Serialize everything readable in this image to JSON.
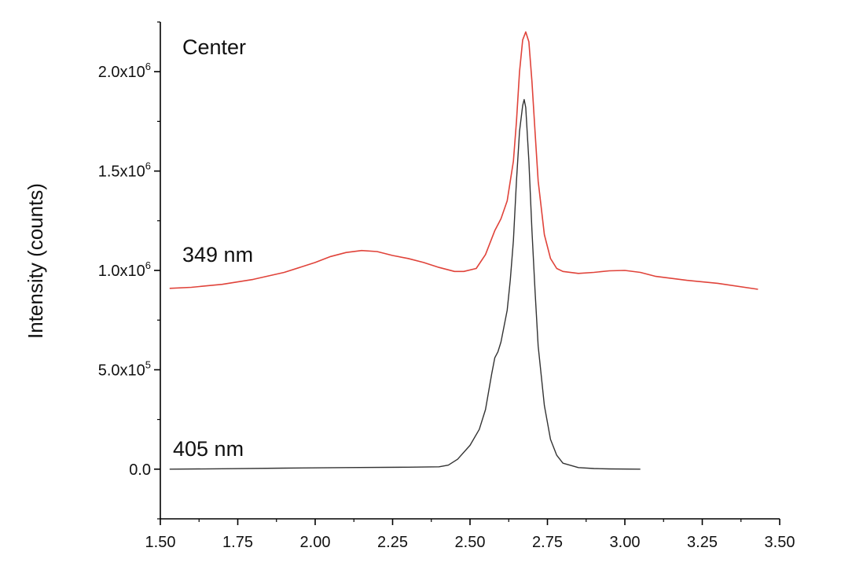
{
  "chart_data": {
    "type": "line",
    "title": "",
    "xlabel": "",
    "ylabel": "Intensity (counts)",
    "xlim": [
      1.5,
      3.5
    ],
    "ylim": [
      -250000,
      2250000
    ],
    "grid": false,
    "x_ticks": [
      {
        "value": 1.5,
        "label": "1.50"
      },
      {
        "value": 1.75,
        "label": "1.75"
      },
      {
        "value": 2.0,
        "label": "2.00"
      },
      {
        "value": 2.25,
        "label": "2.25"
      },
      {
        "value": 2.5,
        "label": "2.50"
      },
      {
        "value": 2.75,
        "label": "2.75"
      },
      {
        "value": 3.0,
        "label": "3.00"
      },
      {
        "value": 3.25,
        "label": "3.25"
      },
      {
        "value": 3.5,
        "label": "3.50"
      }
    ],
    "y_ticks": [
      {
        "value": 0,
        "mantissa": "0.0",
        "exponent": ""
      },
      {
        "value": 500000,
        "mantissa": "5.0x10",
        "exponent": "5"
      },
      {
        "value": 1000000,
        "mantissa": "1.0x10",
        "exponent": "6"
      },
      {
        "value": 1500000,
        "mantissa": "1.5x10",
        "exponent": "6"
      },
      {
        "value": 2000000,
        "mantissa": "2.0x10",
        "exponent": "6"
      }
    ],
    "annotations": {
      "panel": "Center",
      "series_349": "349 nm",
      "series_405": "405 nm"
    },
    "series": [
      {
        "name": "349 nm",
        "color": "#e0433a",
        "x": [
          1.53,
          1.6,
          1.7,
          1.8,
          1.9,
          2.0,
          2.05,
          2.1,
          2.15,
          2.2,
          2.25,
          2.3,
          2.35,
          2.4,
          2.45,
          2.48,
          2.52,
          2.55,
          2.58,
          2.6,
          2.62,
          2.64,
          2.65,
          2.66,
          2.67,
          2.68,
          2.69,
          2.7,
          2.71,
          2.72,
          2.74,
          2.76,
          2.78,
          2.8,
          2.85,
          2.9,
          2.95,
          3.0,
          3.05,
          3.1,
          3.2,
          3.3,
          3.43
        ],
        "y": [
          910000,
          915000,
          930000,
          955000,
          990000,
          1040000,
          1070000,
          1090000,
          1100000,
          1095000,
          1075000,
          1060000,
          1040000,
          1015000,
          995000,
          995000,
          1010000,
          1080000,
          1200000,
          1260000,
          1350000,
          1550000,
          1750000,
          2000000,
          2160000,
          2200000,
          2150000,
          1950000,
          1700000,
          1450000,
          1180000,
          1060000,
          1010000,
          995000,
          985000,
          990000,
          998000,
          1000000,
          990000,
          970000,
          950000,
          935000,
          905000
        ]
      },
      {
        "name": "405 nm",
        "color": "#333333",
        "x": [
          1.53,
          1.7,
          1.9,
          2.1,
          2.3,
          2.4,
          2.43,
          2.46,
          2.5,
          2.53,
          2.55,
          2.57,
          2.58,
          2.59,
          2.6,
          2.62,
          2.63,
          2.64,
          2.65,
          2.66,
          2.67,
          2.675,
          2.68,
          2.69,
          2.7,
          2.71,
          2.72,
          2.74,
          2.76,
          2.78,
          2.8,
          2.85,
          2.9,
          2.95,
          3.05
        ],
        "y": [
          0,
          2000,
          5000,
          8000,
          10000,
          12000,
          20000,
          50000,
          120000,
          200000,
          300000,
          480000,
          560000,
          590000,
          640000,
          800000,
          950000,
          1150000,
          1450000,
          1700000,
          1830000,
          1860000,
          1820000,
          1550000,
          1200000,
          900000,
          620000,
          320000,
          150000,
          70000,
          30000,
          8000,
          3000,
          1000,
          0
        ]
      }
    ]
  }
}
